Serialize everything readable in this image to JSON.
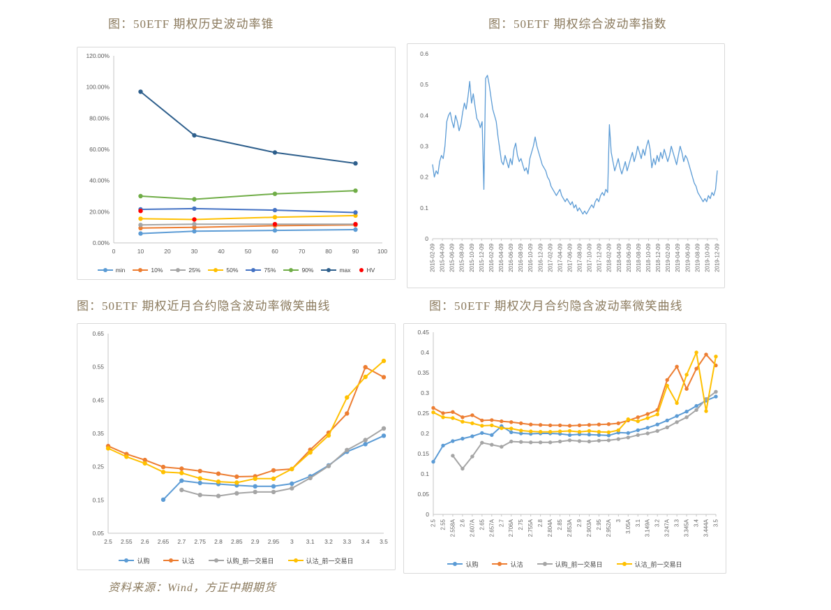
{
  "page": {
    "titles": [
      "图：50ETF 期权历史波动率锥",
      "图：50ETF 期权综合波动率指数",
      "图：50ETF 期权近月合约隐含波动率微笑曲线",
      "图：50ETF 期权次月合约隐含波动率微笑曲线"
    ],
    "source_note": "资料来源：Wind，方正中期期货"
  },
  "colors": {
    "title_text": "#8a795c",
    "axis_text": "#595959",
    "axis_line": "#c6c6c6",
    "box_border": "#d9d9d9",
    "light_blue": "#5B9BD5",
    "orange": "#ED7D31",
    "gray": "#A5A5A5",
    "gold": "#FFC000",
    "blue": "#4472C4",
    "green": "#70AD47",
    "navy": "#2E5F8C",
    "red": "#FF0000"
  },
  "chart_data": [
    {
      "id": "historical-volatility-cone",
      "type": "line",
      "title": "图：50ETF 期权历史波动率锥",
      "xlim": [
        0,
        100
      ],
      "xtick_labels": [
        "0",
        "10",
        "20",
        "30",
        "40",
        "50",
        "60",
        "70",
        "80",
        "90",
        "100"
      ],
      "ylim": [
        0,
        120
      ],
      "yticks": [
        0,
        20,
        40,
        60,
        80,
        100,
        120
      ],
      "ytick_labels": [
        "0.00%",
        "20.00%",
        "40.00%",
        "60.00%",
        "80.00%",
        "100.00%",
        "120.00%"
      ],
      "grid": false,
      "legend_position": "bottom",
      "series": [
        {
          "name": "min",
          "color": "#5B9BD5",
          "x": [
            10,
            30,
            60,
            90
          ],
          "values": [
            6,
            7.5,
            8,
            8.5
          ]
        },
        {
          "name": "10%",
          "color": "#ED7D31",
          "x": [
            10,
            30,
            60,
            90
          ],
          "values": [
            9.5,
            10,
            11,
            11.5
          ]
        },
        {
          "name": "25%",
          "color": "#A5A5A5",
          "x": [
            10,
            30,
            60,
            90
          ],
          "values": [
            11.5,
            12,
            12,
            12
          ]
        },
        {
          "name": "50%",
          "color": "#FFC000",
          "x": [
            10,
            30,
            60,
            90
          ],
          "values": [
            15.5,
            15,
            16.5,
            17.5
          ]
        },
        {
          "name": "75%",
          "color": "#4472C4",
          "x": [
            10,
            30,
            60,
            90
          ],
          "values": [
            21.5,
            22,
            21,
            19.5
          ]
        },
        {
          "name": "90%",
          "color": "#70AD47",
          "x": [
            10,
            30,
            60,
            90
          ],
          "values": [
            30,
            28,
            31.5,
            33.5
          ]
        },
        {
          "name": "max",
          "color": "#2E5F8C",
          "x": [
            10,
            30,
            60,
            90
          ],
          "values": [
            97,
            69,
            58,
            51
          ]
        },
        {
          "name": "HV",
          "color": "#FF0000",
          "x": [
            10,
            30,
            60,
            90
          ],
          "values": [
            20.5,
            15,
            12,
            12
          ],
          "markers_only": true
        }
      ],
      "layout": {
        "ml": 52,
        "mr": 18,
        "mt": 12,
        "mb": 26,
        "markers": true,
        "marker_r": 3.2,
        "line_width": 2,
        "left_axis": true,
        "rotate_x": false,
        "tick_marks": false
      }
    },
    {
      "id": "composite-volatility-index",
      "type": "line",
      "title": "图：50ETF 期权综合波动率指数",
      "xtick_labels": [
        "2015-02-09",
        "2015-04-09",
        "2015-06-09",
        "2015-08-09",
        "2015-10-09",
        "2015-12-09",
        "2016-02-09",
        "2016-04-09",
        "2016-06-09",
        "2016-08-09",
        "2016-10-09",
        "2016-12-09",
        "2017-02-09",
        "2017-04-09",
        "2017-06-09",
        "2017-08-09",
        "2017-10-09",
        "2017-12-09",
        "2018-02-09",
        "2018-04-09",
        "2018-06-09",
        "2018-08-09",
        "2018-10-09",
        "2018-12-09",
        "2019-02-09",
        "2019-04-09",
        "2019-06-09",
        "2019-08-09",
        "2019-10-09",
        "2019-12-09"
      ],
      "ylim": [
        0,
        0.6
      ],
      "yticks": [
        0,
        0.1,
        0.2,
        0.3,
        0.4,
        0.5,
        0.6
      ],
      "ytick_labels": [
        "0",
        "0.1",
        "0.2",
        "0.3",
        "0.4",
        "0.5",
        "0.6"
      ],
      "grid": false,
      "legend_position": "none",
      "series": [
        {
          "color": "#5B9BD5",
          "values": [
            0.24,
            0.2,
            0.22,
            0.21,
            0.25,
            0.27,
            0.26,
            0.3,
            0.38,
            0.4,
            0.41,
            0.38,
            0.36,
            0.4,
            0.38,
            0.35,
            0.37,
            0.41,
            0.44,
            0.42,
            0.46,
            0.51,
            0.44,
            0.47,
            0.43,
            0.39,
            0.38,
            0.36,
            0.38,
            0.16,
            0.52,
            0.53,
            0.5,
            0.46,
            0.42,
            0.4,
            0.38,
            0.33,
            0.29,
            0.25,
            0.24,
            0.27,
            0.25,
            0.23,
            0.26,
            0.24,
            0.29,
            0.31,
            0.27,
            0.25,
            0.26,
            0.24,
            0.22,
            0.23,
            0.21,
            0.26,
            0.28,
            0.3,
            0.33,
            0.3,
            0.28,
            0.26,
            0.24,
            0.23,
            0.22,
            0.2,
            0.19,
            0.17,
            0.16,
            0.15,
            0.14,
            0.15,
            0.16,
            0.14,
            0.13,
            0.12,
            0.13,
            0.12,
            0.11,
            0.12,
            0.1,
            0.11,
            0.09,
            0.1,
            0.09,
            0.08,
            0.09,
            0.08,
            0.09,
            0.1,
            0.11,
            0.1,
            0.12,
            0.13,
            0.12,
            0.14,
            0.15,
            0.14,
            0.16,
            0.15,
            0.37,
            0.28,
            0.25,
            0.22,
            0.24,
            0.26,
            0.23,
            0.21,
            0.23,
            0.25,
            0.22,
            0.24,
            0.26,
            0.28,
            0.25,
            0.27,
            0.3,
            0.28,
            0.26,
            0.29,
            0.27,
            0.3,
            0.32,
            0.29,
            0.23,
            0.26,
            0.24,
            0.27,
            0.25,
            0.28,
            0.26,
            0.29,
            0.27,
            0.25,
            0.27,
            0.3,
            0.28,
            0.26,
            0.24,
            0.27,
            0.3,
            0.28,
            0.25,
            0.27,
            0.26,
            0.24,
            0.22,
            0.2,
            0.18,
            0.17,
            0.15,
            0.14,
            0.13,
            0.12,
            0.13,
            0.12,
            0.14,
            0.13,
            0.15,
            0.14,
            0.16,
            0.22
          ]
        }
      ],
      "layout": {
        "ml": 36,
        "mr": 10,
        "mt": 14,
        "mb": 70,
        "markers": false,
        "line_width": 1.3,
        "left_axis": false,
        "rotate_x": true,
        "tick_marks": true
      }
    },
    {
      "id": "near-month-smile",
      "type": "line",
      "title": "图：50ETF 期权近月合约隐含波动率微笑曲线",
      "xtick_labels": [
        "2.5",
        "2.55",
        "2.6",
        "2.65",
        "2.7",
        "2.75",
        "2.8",
        "2.85",
        "2.9",
        "2.95",
        "3",
        "3.1",
        "3.2",
        "3.3",
        "3.4",
        "3.5"
      ],
      "ylim": [
        0.05,
        0.65
      ],
      "yticks": [
        0.05,
        0.15,
        0.25,
        0.35,
        0.45,
        0.55,
        0.65
      ],
      "ytick_labels": [
        "0.05",
        "0.15",
        "0.25",
        "0.35",
        "0.45",
        "0.55",
        "0.65"
      ],
      "grid": false,
      "legend_position": "bottom",
      "series": [
        {
          "name": "认购",
          "color": "#5B9BD5",
          "values": [
            null,
            null,
            null,
            0.151,
            0.208,
            0.201,
            0.198,
            0.194,
            0.191,
            0.191,
            0.199,
            0.221,
            0.254,
            0.295,
            0.318,
            0.343
          ]
        },
        {
          "name": "认沽",
          "color": "#ED7D31",
          "values": [
            0.312,
            0.288,
            0.27,
            0.249,
            0.244,
            0.237,
            0.229,
            0.22,
            0.221,
            0.239,
            0.243,
            0.301,
            0.352,
            0.41,
            0.549,
            0.519
          ]
        },
        {
          "name": "认购_前一交易日",
          "color": "#A5A5A5",
          "values": [
            null,
            null,
            null,
            null,
            0.18,
            0.165,
            0.162,
            0.17,
            0.174,
            0.174,
            0.185,
            0.216,
            0.252,
            0.3,
            0.33,
            0.365
          ]
        },
        {
          "name": "认沽_前一交易日",
          "color": "#FFC000",
          "values": [
            0.305,
            0.28,
            0.26,
            0.234,
            0.231,
            0.215,
            0.205,
            0.202,
            0.214,
            0.214,
            0.243,
            0.293,
            0.344,
            0.458,
            0.52,
            0.568
          ]
        }
      ],
      "layout": {
        "ml": 44,
        "mr": 16,
        "mt": 14,
        "mb": 26,
        "markers": true,
        "marker_r": 3.2,
        "line_width": 2,
        "left_axis": true,
        "rotate_x": false,
        "tick_marks": false
      }
    },
    {
      "id": "next-month-smile",
      "type": "line",
      "title": "图：50ETF 期权次月合约隐含波动率微笑曲线",
      "xtick_labels": [
        "2.5",
        "2.55",
        "2.558A",
        "2.6",
        "2.607A",
        "2.65",
        "2.657A",
        "2.7",
        "2.706A",
        "2.75",
        "2.755A",
        "2.8",
        "2.804A",
        "2.85",
        "2.853A",
        "2.9",
        "2.903A",
        "2.95",
        "2.952A",
        "3",
        "3.05A",
        "3.1",
        "3.149A",
        "3.2",
        "3.247A",
        "3.3",
        "3.345A",
        "3.4",
        "3.444A",
        "3.5"
      ],
      "ylim": [
        0,
        0.45
      ],
      "yticks": [
        0,
        0.05,
        0.1,
        0.15,
        0.2,
        0.25,
        0.3,
        0.35,
        0.4,
        0.45
      ],
      "ytick_labels": [
        "0",
        "0.05",
        "0.1",
        "0.15",
        "0.2",
        "0.25",
        "0.3",
        "0.35",
        "0.4",
        "0.45"
      ],
      "grid": false,
      "legend_position": "bottom",
      "series": [
        {
          "name": "认购",
          "color": "#5B9BD5",
          "values": [
            0.13,
            0.17,
            0.181,
            0.187,
            0.193,
            0.201,
            0.196,
            0.218,
            0.203,
            0.2,
            0.199,
            0.2,
            0.2,
            0.199,
            0.196,
            0.198,
            0.197,
            0.196,
            0.195,
            0.202,
            0.201,
            0.208,
            0.214,
            0.222,
            0.232,
            0.243,
            0.254,
            0.268,
            0.281,
            0.291
          ]
        },
        {
          "name": "认沽",
          "color": "#ED7D31",
          "values": [
            0.263,
            0.25,
            0.253,
            0.24,
            0.245,
            0.232,
            0.233,
            0.23,
            0.228,
            0.225,
            0.222,
            0.221,
            0.22,
            0.22,
            0.219,
            0.22,
            0.221,
            0.222,
            0.223,
            0.225,
            0.232,
            0.24,
            0.248,
            0.258,
            0.332,
            0.365,
            0.31,
            0.36,
            0.395,
            0.368
          ]
        },
        {
          "name": "认购_前一交易日",
          "color": "#A5A5A5",
          "values": [
            null,
            null,
            0.145,
            0.113,
            0.143,
            0.177,
            0.172,
            0.167,
            0.18,
            0.179,
            0.178,
            0.178,
            0.178,
            0.18,
            0.183,
            0.181,
            0.18,
            0.182,
            0.183,
            0.186,
            0.19,
            0.196,
            0.2,
            0.206,
            0.215,
            0.228,
            0.24,
            0.258,
            0.285,
            0.303
          ]
        },
        {
          "name": "认沽_前一交易日",
          "color": "#FFC000",
          "values": [
            0.252,
            0.24,
            0.238,
            0.229,
            0.225,
            0.219,
            0.22,
            0.213,
            0.212,
            0.207,
            0.205,
            0.204,
            0.204,
            0.205,
            0.206,
            0.204,
            0.206,
            0.204,
            0.203,
            0.208,
            0.235,
            0.23,
            0.238,
            0.247,
            0.318,
            0.275,
            0.345,
            0.4,
            0.255,
            0.39
          ]
        }
      ],
      "layout": {
        "ml": 42,
        "mr": 14,
        "mt": 12,
        "mb": 58,
        "markers": true,
        "marker_r": 2.7,
        "line_width": 2,
        "left_axis": true,
        "rotate_x": true,
        "tick_marks": true
      }
    }
  ]
}
